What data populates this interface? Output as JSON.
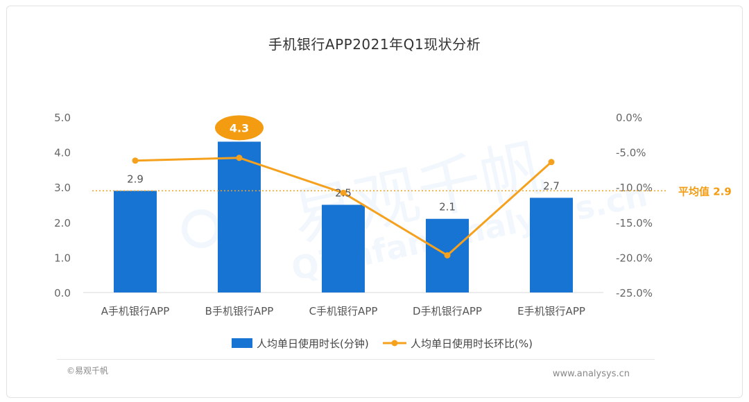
{
  "title": "手机银行APP2021年Q1现状分析",
  "footer": {
    "source": "©易观千帆",
    "site": "www.analysys.cn"
  },
  "watermark": {
    "cn": "易观千帆",
    "en": "Qianfan.analysys.cn"
  },
  "average_label": "平均值 2.9",
  "highlight_label": "4.3",
  "colors": {
    "bar": "#1874d2",
    "line": "#f5a11d",
    "avg_text": "#f39c12",
    "highlight": "#f39c12"
  },
  "chart_data": {
    "type": "bar",
    "title": "手机银行APP2021年Q1现状分析",
    "categories": [
      "A手机银行APP",
      "B手机银行APP",
      "C手机银行APP",
      "D手机银行APP",
      "E手机银行APP"
    ],
    "series": [
      {
        "name": "人均单日使用时长(分钟)",
        "type": "bar",
        "axis": "left",
        "values": [
          2.9,
          4.3,
          2.5,
          2.1,
          2.7
        ],
        "labels": [
          "2.9",
          "4.3",
          "2.5",
          "2.1",
          "2.7"
        ]
      },
      {
        "name": "人均单日使用时长环比(%)",
        "type": "line",
        "axis": "right",
        "values": [
          -6.2,
          -5.8,
          -10.8,
          -19.7,
          -6.4
        ]
      }
    ],
    "left_axis": {
      "ylim": [
        0,
        5
      ],
      "ticks": [
        "0.0",
        "1.0",
        "2.0",
        "3.0",
        "4.0",
        "5.0"
      ]
    },
    "right_axis": {
      "ylim": [
        -25,
        0
      ],
      "ticks": [
        "-25.0%",
        "-20.0%",
        "-15.0%",
        "-10.0%",
        "-5.0%",
        "0.0%"
      ]
    },
    "average": 2.9,
    "grid": false,
    "legend_position": "bottom"
  }
}
